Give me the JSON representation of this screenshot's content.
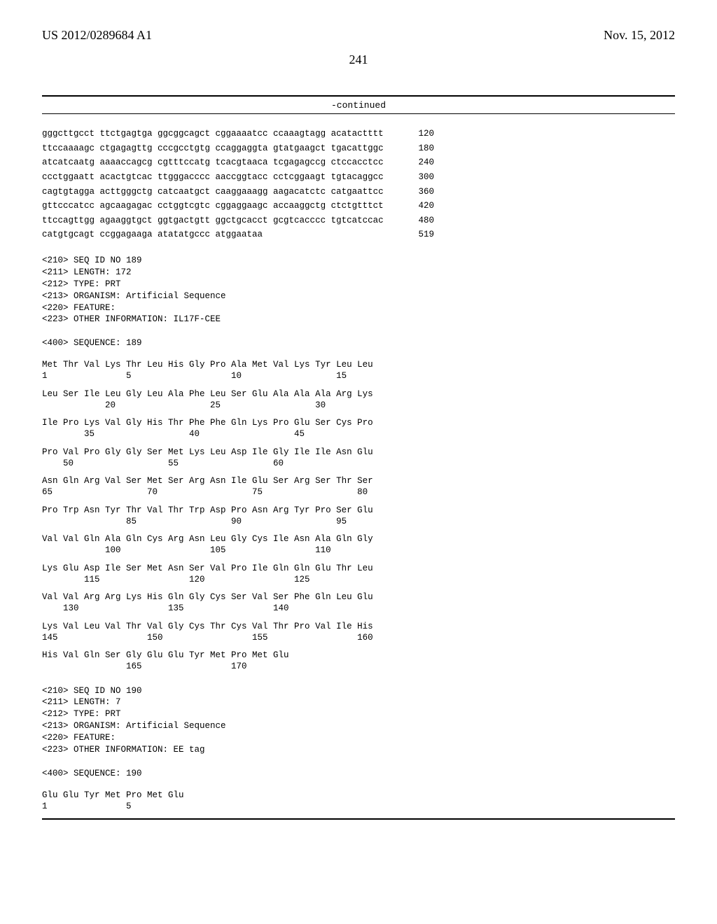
{
  "header": {
    "publication_number": "US 2012/0289684 A1",
    "date": "Nov. 15, 2012",
    "page_number": "241"
  },
  "continued_label": "-continued",
  "nucleotide_rows": [
    {
      "seq": "gggcttgcct ttctgagtga ggcggcagct cggaaaatcc ccaaagtagg acatactttt",
      "pos": "120"
    },
    {
      "seq": "ttccaaaagc ctgagagttg cccgcctgtg ccaggaggta gtatgaagct tgacattggc",
      "pos": "180"
    },
    {
      "seq": "atcatcaatg aaaaccagcg cgtttccatg tcacgtaaca tcgagagccg ctccacctcc",
      "pos": "240"
    },
    {
      "seq": "ccctggaatt acactgtcac ttgggacccc aaccggtacc cctcggaagt tgtacaggcc",
      "pos": "300"
    },
    {
      "seq": "cagtgtagga acttgggctg catcaatgct caaggaaagg aagacatctc catgaattcc",
      "pos": "360"
    },
    {
      "seq": "gttcccatcc agcaagagac cctggtcgtc cggaggaagc accaaggctg ctctgtttct",
      "pos": "420"
    },
    {
      "seq": "ttccagttgg agaaggtgct ggtgactgtt ggctgcacct gcgtcacccc tgtcatccac",
      "pos": "480"
    },
    {
      "seq": "catgtgcagt ccggagaaga atatatgccc atggaataa",
      "pos": "519"
    }
  ],
  "seq189": {
    "meta": "<210> SEQ ID NO 189\n<211> LENGTH: 172\n<212> TYPE: PRT\n<213> ORGANISM: Artificial Sequence\n<220> FEATURE:\n<223> OTHER INFORMATION: IL17F-CEE\n\n<400> SEQUENCE: 189",
    "aa_pairs": [
      {
        "res": "Met Thr Val Lys Thr Leu His Gly Pro Ala Met Val Lys Tyr Leu Leu",
        "num": "1               5                   10                  15"
      },
      {
        "res": "Leu Ser Ile Leu Gly Leu Ala Phe Leu Ser Glu Ala Ala Ala Arg Lys",
        "num": "            20                  25                  30"
      },
      {
        "res": "Ile Pro Lys Val Gly His Thr Phe Phe Gln Lys Pro Glu Ser Cys Pro",
        "num": "        35                  40                  45"
      },
      {
        "res": "Pro Val Pro Gly Gly Ser Met Lys Leu Asp Ile Gly Ile Ile Asn Glu",
        "num": "    50                  55                  60"
      },
      {
        "res": "Asn Gln Arg Val Ser Met Ser Arg Asn Ile Glu Ser Arg Ser Thr Ser",
        "num": "65                  70                  75                  80"
      },
      {
        "res": "Pro Trp Asn Tyr Thr Val Thr Trp Asp Pro Asn Arg Tyr Pro Ser Glu",
        "num": "                85                  90                  95"
      },
      {
        "res": "Val Val Gln Ala Gln Cys Arg Asn Leu Gly Cys Ile Asn Ala Gln Gly",
        "num": "            100                 105                 110"
      },
      {
        "res": "Lys Glu Asp Ile Ser Met Asn Ser Val Pro Ile Gln Gln Glu Thr Leu",
        "num": "        115                 120                 125"
      },
      {
        "res": "Val Val Arg Arg Lys His Gln Gly Cys Ser Val Ser Phe Gln Leu Glu",
        "num": "    130                 135                 140"
      },
      {
        "res": "Lys Val Leu Val Thr Val Gly Cys Thr Cys Val Thr Pro Val Ile His",
        "num": "145                 150                 155                 160"
      },
      {
        "res": "His Val Gln Ser Gly Glu Glu Tyr Met Pro Met Glu",
        "num": "                165                 170"
      }
    ]
  },
  "seq190": {
    "meta": "<210> SEQ ID NO 190\n<211> LENGTH: 7\n<212> TYPE: PRT\n<213> ORGANISM: Artificial Sequence\n<220> FEATURE:\n<223> OTHER INFORMATION: EE tag\n\n<400> SEQUENCE: 190",
    "aa_pairs": [
      {
        "res": "Glu Glu Tyr Met Pro Met Glu",
        "num": "1               5"
      }
    ]
  }
}
